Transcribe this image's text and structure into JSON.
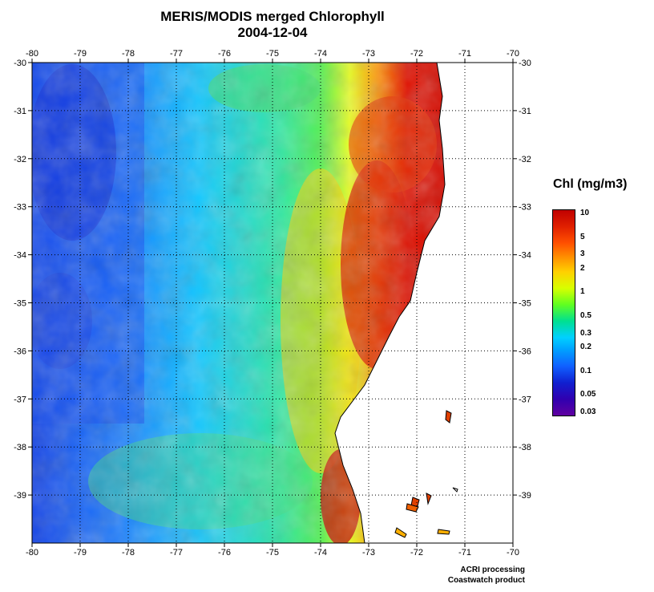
{
  "title": "MERIS/MODIS merged Chlorophyll",
  "date": "2004-12-04",
  "map": {
    "lon_range": [
      -80,
      -70
    ],
    "lat_range": [
      -40,
      -30
    ],
    "lon_ticks": [
      "-80",
      "-79",
      "-78",
      "-77",
      "-76",
      "-75",
      "-74",
      "-73",
      "-72",
      "-71",
      "-70"
    ],
    "lat_ticks": [
      "-30",
      "-31",
      "-32",
      "-33",
      "-34",
      "-35",
      "-36",
      "-37",
      "-38",
      "-39"
    ],
    "grid": "dotted",
    "land_color": "#ffffff",
    "ocean_low_color": "#1030e0",
    "ocean_mid_color": "#00d0ff",
    "coastal_high_color": "#d00000"
  },
  "legend": {
    "title": "Chl (mg/m3)",
    "labels": [
      "10",
      "5",
      "3",
      "2",
      "1",
      "0.5",
      "0.3",
      "0.2",
      "0.1",
      "0.05",
      "0.03"
    ],
    "scale": "log"
  },
  "credits": [
    "ACRI processing",
    "Coastwatch product"
  ]
}
